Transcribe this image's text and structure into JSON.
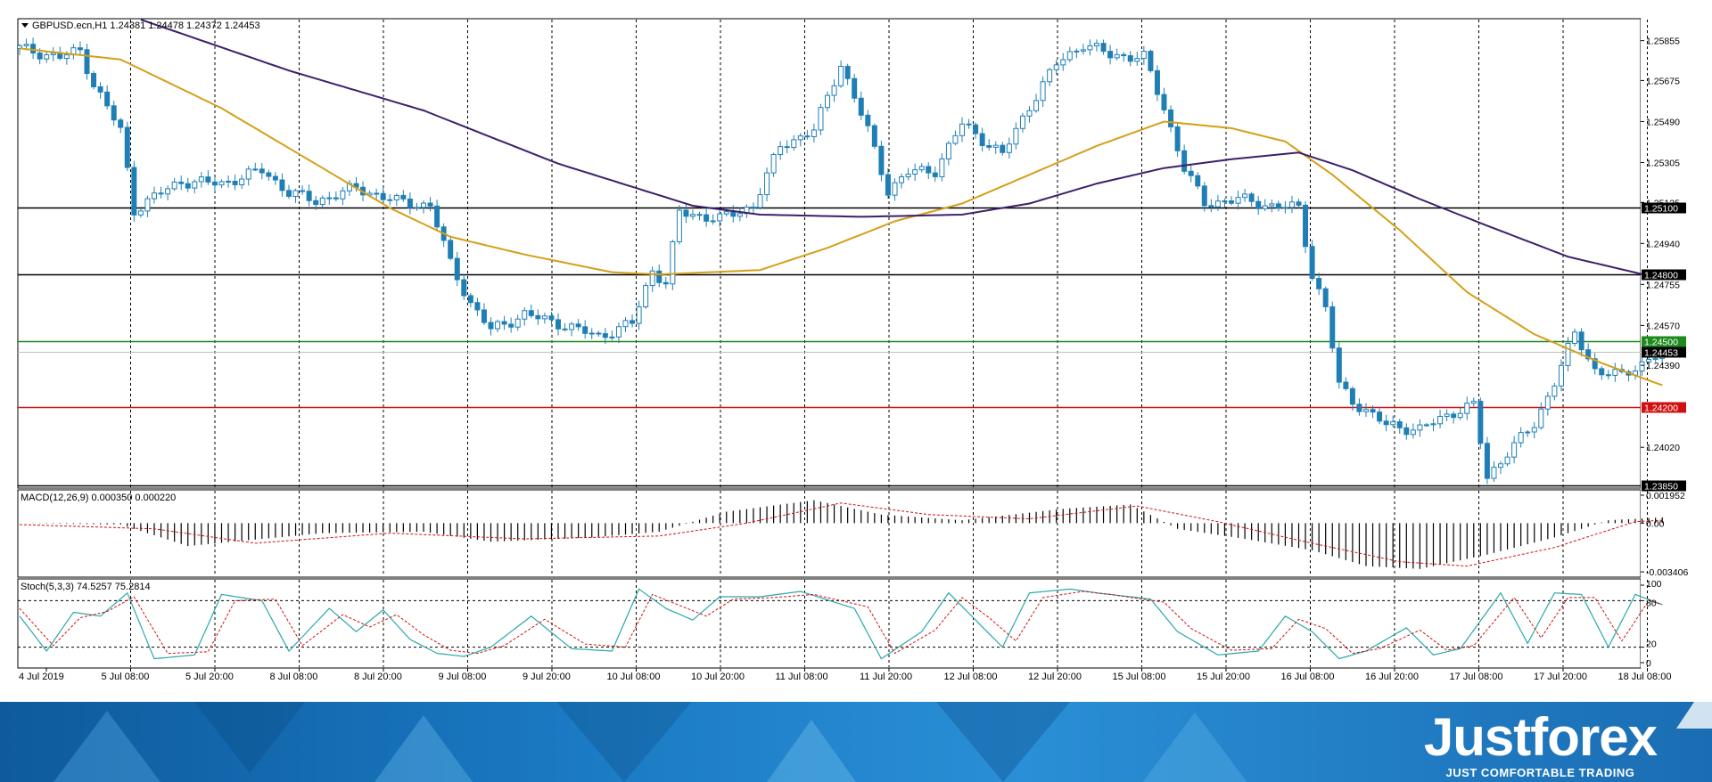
{
  "header": {
    "symbol_line": "GBPUSD.ecn,H1  1.24381 1.24478 1.24372 1.24453"
  },
  "colors": {
    "candle": "#1f7fb5",
    "ma_fast": "#d4a019",
    "ma_slow": "#3d1f6b",
    "level_support": "#000000",
    "level_green": "#1d8a1d",
    "level_red": "#d01010",
    "macd_signal": "#d01010",
    "stoch_main": "#2aa8a8",
    "stoch_signal": "#d01010"
  },
  "price_axis": {
    "ticks": [
      "1.25855",
      "1.25675",
      "1.25490",
      "1.25305",
      "1.25125",
      "1.24940",
      "1.24755",
      "1.24570",
      "1.24390",
      "1.24020"
    ]
  },
  "levels": [
    {
      "value": 1.251,
      "label": "1.25100",
      "color": "#000000"
    },
    {
      "value": 1.248,
      "label": "1.24800",
      "color": "#000000"
    },
    {
      "value": 1.245,
      "label": "1.24500",
      "color": "#1d8a1d"
    },
    {
      "value": 1.2445,
      "label": "1.24453",
      "color": "#bfbfbf"
    },
    {
      "value": 1.242,
      "label": "1.24200",
      "color": "#d01010"
    },
    {
      "value": 1.2385,
      "label": "1.23850",
      "color": "#000000"
    }
  ],
  "time_axis": {
    "labels": [
      "4 Jul 2019",
      "5 Jul 08:00",
      "5 Jul 20:00",
      "8 Jul 08:00",
      "8 Jul 20:00",
      "9 Jul 08:00",
      "9 Jul 20:00",
      "10 Jul 08:00",
      "10 Jul 20:00",
      "11 Jul 08:00",
      "11 Jul 20:00",
      "12 Jul 08:00",
      "12 Jul 20:00",
      "15 Jul 08:00",
      "15 Jul 20:00",
      "16 Jul 08:00",
      "16 Jul 20:00",
      "17 Jul 08:00",
      "17 Jul 20:00",
      "18 Jul 08:00"
    ]
  },
  "macd": {
    "title": "MACD(12,26,9) 0.000350 0.000220",
    "ticks": [
      "0.001952",
      "0.00",
      "-0.003406"
    ]
  },
  "stoch": {
    "title": "Stoch(5,3,3) 74.5257 75.2814",
    "ticks": [
      "100",
      "80",
      "20",
      "0"
    ]
  },
  "brand": {
    "logo": "Justforex",
    "tagline": "JUST COMFORTABLE TRADING"
  },
  "chart_data": {
    "type": "candlestick",
    "symbol": "GBPUSD.ecn",
    "timeframe": "H1",
    "last_ohlc": {
      "open": 1.24381,
      "high": 1.24478,
      "low": 1.24372,
      "close": 1.24453
    },
    "price_range": [
      1.2384,
      1.2595
    ],
    "close_path": [
      [
        0,
        1.2582
      ],
      [
        6,
        1.2578
      ],
      [
        9,
        1.2581
      ],
      [
        11,
        1.2566
      ],
      [
        15,
        1.2545
      ],
      [
        17,
        1.2509
      ],
      [
        20,
        1.2515
      ],
      [
        24,
        1.2522
      ],
      [
        30,
        1.2521
      ],
      [
        36,
        1.2527
      ],
      [
        40,
        1.2517
      ],
      [
        44,
        1.2513
      ],
      [
        50,
        1.2519
      ],
      [
        56,
        1.2513
      ],
      [
        61,
        1.2511
      ],
      [
        64,
        1.2485
      ],
      [
        67,
        1.2467
      ],
      [
        70,
        1.2455
      ],
      [
        75,
        1.2462
      ],
      [
        80,
        1.2458
      ],
      [
        86,
        1.2452
      ],
      [
        91,
        1.2458
      ],
      [
        94,
        1.2482
      ],
      [
        96,
        1.2476
      ],
      [
        98,
        1.2508
      ],
      [
        104,
        1.2505
      ],
      [
        109,
        1.2511
      ],
      [
        113,
        1.2538
      ],
      [
        118,
        1.2545
      ],
      [
        122,
        1.2575
      ],
      [
        126,
        1.2545
      ],
      [
        129,
        1.2518
      ],
      [
        132,
        1.2526
      ],
      [
        136,
        1.2527
      ],
      [
        140,
        1.2548
      ],
      [
        146,
        1.2534
      ],
      [
        150,
        1.2556
      ],
      [
        154,
        1.2575
      ],
      [
        158,
        1.2584
      ],
      [
        162,
        1.2579
      ],
      [
        167,
        1.2578
      ],
      [
        170,
        1.2555
      ],
      [
        173,
        1.2528
      ],
      [
        176,
        1.2512
      ],
      [
        181,
        1.2514
      ],
      [
        186,
        1.2511
      ],
      [
        190,
        1.251
      ],
      [
        192,
        1.248
      ],
      [
        194,
        1.2465
      ],
      [
        196,
        1.243
      ],
      [
        198,
        1.2423
      ],
      [
        203,
        1.2412
      ],
      [
        208,
        1.241
      ],
      [
        213,
        1.2418
      ],
      [
        216,
        1.2421
      ],
      [
        218,
        1.2388
      ],
      [
        221,
        1.24
      ],
      [
        225,
        1.2412
      ],
      [
        228,
        1.2432
      ],
      [
        231,
        1.2453
      ],
      [
        234,
        1.2437
      ],
      [
        238,
        1.2434
      ],
      [
        242,
        1.2442
      ],
      [
        244,
        1.2445
      ]
    ],
    "ma_fast": [
      [
        0,
        1.2582
      ],
      [
        15,
        1.2577
      ],
      [
        30,
        1.2555
      ],
      [
        45,
        1.2528
      ],
      [
        55,
        1.251
      ],
      [
        64,
        1.2497
      ],
      [
        75,
        1.2489
      ],
      [
        88,
        1.2481
      ],
      [
        95,
        1.248
      ],
      [
        110,
        1.2482
      ],
      [
        120,
        1.2492
      ],
      [
        130,
        1.2504
      ],
      [
        140,
        1.2512
      ],
      [
        150,
        1.2525
      ],
      [
        160,
        1.2538
      ],
      [
        170,
        1.2549
      ],
      [
        180,
        1.2546
      ],
      [
        188,
        1.254
      ],
      [
        195,
        1.2525
      ],
      [
        205,
        1.25
      ],
      [
        215,
        1.2472
      ],
      [
        225,
        1.2453
      ],
      [
        235,
        1.244
      ],
      [
        244,
        1.243
      ]
    ],
    "ma_slow": [
      [
        18,
        1.2595
      ],
      [
        40,
        1.2572
      ],
      [
        60,
        1.2554
      ],
      [
        80,
        1.253
      ],
      [
        100,
        1.2511
      ],
      [
        110,
        1.2507
      ],
      [
        125,
        1.2506
      ],
      [
        140,
        1.2507
      ],
      [
        150,
        1.2512
      ],
      [
        160,
        1.2521
      ],
      [
        170,
        1.2528
      ],
      [
        180,
        1.2532
      ],
      [
        190,
        1.2535
      ],
      [
        198,
        1.2527
      ],
      [
        208,
        1.2514
      ],
      [
        218,
        1.2502
      ],
      [
        230,
        1.2488
      ],
      [
        244,
        1.2478
      ]
    ],
    "macd": {
      "range": [
        -0.0034,
        0.00195
      ],
      "histogram_path": [
        [
          0,
          0.0
        ],
        [
          15,
          -0.0001
        ],
        [
          25,
          -0.0016
        ],
        [
          45,
          -0.0007
        ],
        [
          60,
          -0.0006
        ],
        [
          70,
          -0.0013
        ],
        [
          85,
          -0.001
        ],
        [
          95,
          -0.0006
        ],
        [
          105,
          0.0008
        ],
        [
          118,
          0.0016
        ],
        [
          128,
          0.0006
        ],
        [
          140,
          0.0002
        ],
        [
          155,
          0.001
        ],
        [
          165,
          0.0013
        ],
        [
          172,
          -0.0004
        ],
        [
          182,
          -0.0011
        ],
        [
          192,
          -0.0019
        ],
        [
          200,
          -0.003
        ],
        [
          208,
          -0.0032
        ],
        [
          218,
          -0.0022
        ],
        [
          228,
          -0.001
        ],
        [
          236,
          0.0002
        ],
        [
          244,
          0.0004
        ]
      ],
      "signal_path": [
        [
          0,
          -0.0001
        ],
        [
          20,
          -0.0004
        ],
        [
          35,
          -0.0014
        ],
        [
          55,
          -0.0007
        ],
        [
          75,
          -0.0011
        ],
        [
          95,
          -0.0009
        ],
        [
          108,
          0.0
        ],
        [
          122,
          0.0014
        ],
        [
          135,
          0.0006
        ],
        [
          150,
          0.0003
        ],
        [
          166,
          0.0012
        ],
        [
          178,
          0.0001
        ],
        [
          190,
          -0.0012
        ],
        [
          205,
          -0.0027
        ],
        [
          215,
          -0.003
        ],
        [
          228,
          -0.0017
        ],
        [
          240,
          0.0001
        ],
        [
          244,
          0.0002
        ]
      ]
    },
    "stochastic": {
      "range": [
        0,
        100
      ],
      "levels": [
        80,
        20
      ],
      "k_path": [
        [
          0,
          60
        ],
        [
          4,
          15
        ],
        [
          8,
          65
        ],
        [
          12,
          60
        ],
        [
          16,
          90
        ],
        [
          20,
          5
        ],
        [
          26,
          10
        ],
        [
          30,
          88
        ],
        [
          36,
          80
        ],
        [
          40,
          15
        ],
        [
          46,
          70
        ],
        [
          50,
          40
        ],
        [
          54,
          68
        ],
        [
          58,
          30
        ],
        [
          62,
          12
        ],
        [
          66,
          8
        ],
        [
          70,
          20
        ],
        [
          76,
          60
        ],
        [
          82,
          18
        ],
        [
          88,
          15
        ],
        [
          92,
          95
        ],
        [
          96,
          70
        ],
        [
          100,
          55
        ],
        [
          104,
          85
        ],
        [
          110,
          85
        ],
        [
          116,
          92
        ],
        [
          124,
          70
        ],
        [
          128,
          5
        ],
        [
          134,
          40
        ],
        [
          138,
          90
        ],
        [
          142,
          55
        ],
        [
          146,
          20
        ],
        [
          150,
          90
        ],
        [
          156,
          95
        ],
        [
          160,
          90
        ],
        [
          168,
          82
        ],
        [
          172,
          40
        ],
        [
          178,
          10
        ],
        [
          184,
          15
        ],
        [
          188,
          60
        ],
        [
          192,
          40
        ],
        [
          196,
          5
        ],
        [
          200,
          15
        ],
        [
          206,
          45
        ],
        [
          210,
          10
        ],
        [
          214,
          18
        ],
        [
          220,
          90
        ],
        [
          224,
          25
        ],
        [
          228,
          90
        ],
        [
          232,
          88
        ],
        [
          236,
          20
        ],
        [
          240,
          88
        ],
        [
          244,
          75
        ]
      ],
      "d_path": [
        [
          0,
          70
        ],
        [
          5,
          22
        ],
        [
          9,
          58
        ],
        [
          13,
          66
        ],
        [
          17,
          85
        ],
        [
          22,
          12
        ],
        [
          28,
          14
        ],
        [
          32,
          80
        ],
        [
          38,
          82
        ],
        [
          42,
          22
        ],
        [
          48,
          62
        ],
        [
          52,
          46
        ],
        [
          56,
          62
        ],
        [
          60,
          36
        ],
        [
          64,
          16
        ],
        [
          68,
          12
        ],
        [
          72,
          22
        ],
        [
          78,
          56
        ],
        [
          84,
          24
        ],
        [
          90,
          20
        ],
        [
          94,
          88
        ],
        [
          98,
          74
        ],
        [
          102,
          60
        ],
        [
          106,
          82
        ],
        [
          112,
          84
        ],
        [
          118,
          88
        ],
        [
          126,
          72
        ],
        [
          130,
          12
        ],
        [
          136,
          42
        ],
        [
          140,
          84
        ],
        [
          144,
          58
        ],
        [
          148,
          28
        ],
        [
          152,
          84
        ],
        [
          158,
          92
        ],
        [
          162,
          88
        ],
        [
          170,
          78
        ],
        [
          174,
          44
        ],
        [
          180,
          16
        ],
        [
          186,
          18
        ],
        [
          190,
          56
        ],
        [
          194,
          44
        ],
        [
          198,
          12
        ],
        [
          202,
          18
        ],
        [
          208,
          42
        ],
        [
          212,
          16
        ],
        [
          216,
          22
        ],
        [
          222,
          84
        ],
        [
          226,
          32
        ],
        [
          230,
          84
        ],
        [
          234,
          84
        ],
        [
          238,
          28
        ],
        [
          242,
          80
        ],
        [
          244,
          75
        ]
      ]
    }
  }
}
